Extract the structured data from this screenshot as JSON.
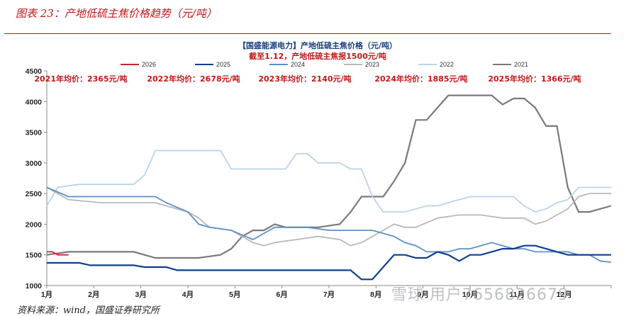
{
  "figure_caption": "图表 23：产地低硫主焦价格趋势（元/吨）",
  "source_note": "资料来源：wind，国盛证券研究所",
  "watermark": "雪球·用户7656826679",
  "chart_data": {
    "type": "line",
    "title": "【国盛能源电力】产地低硫主焦价格（元/吨）",
    "subtitle": "截至1.12，产地低硫主焦报1500元/吨",
    "x_labels": [
      "1月",
      "2月",
      "3月",
      "4月",
      "5月",
      "6月",
      "7月",
      "8月",
      "9月",
      "10月",
      "11月",
      "12月"
    ],
    "x_domain": [
      0,
      52
    ],
    "ylim": [
      1000,
      4500
    ],
    "y_ticks": [
      1000,
      1500,
      2000,
      2500,
      3000,
      3500,
      4000,
      4500
    ],
    "grid": "none",
    "legend_placement": "top",
    "annotations": [
      "2021年均价：2365元/吨",
      "2022年均价：2678元/吨",
      "2023年均价：2140元/吨",
      "2024年均价：1885元/吨",
      "2025年均价：1366元/吨"
    ],
    "series": [
      {
        "name": "2026",
        "color": "#d3202f",
        "x": [
          0,
          0.5,
          1,
          1.5,
          2
        ],
        "y": [
          1550,
          1550,
          1500,
          1500,
          1500
        ]
      },
      {
        "name": "2025",
        "color": "#0f3f8f",
        "x": [
          0,
          3,
          4,
          8,
          9,
          11,
          12,
          28,
          29,
          30,
          31,
          32,
          33,
          34,
          35,
          36,
          37,
          38,
          39,
          40,
          41,
          42,
          43,
          44,
          45,
          46,
          47,
          48,
          49,
          50,
          51,
          52
        ],
        "y": [
          1370,
          1370,
          1330,
          1330,
          1300,
          1300,
          1250,
          1250,
          1100,
          1100,
          1300,
          1500,
          1500,
          1450,
          1450,
          1550,
          1500,
          1400,
          1500,
          1500,
          1550,
          1600,
          1600,
          1650,
          1650,
          1600,
          1550,
          1500,
          1500,
          1500,
          1500,
          1500
        ]
      },
      {
        "name": "2024",
        "color": "#5b8fc9",
        "x": [
          0,
          2,
          3,
          5,
          10,
          11,
          13,
          14,
          15,
          17,
          19,
          20,
          21,
          22,
          24,
          26,
          27,
          29,
          30,
          31,
          32,
          33,
          34,
          35,
          36,
          37,
          38,
          39,
          40,
          41,
          42,
          43,
          44,
          45,
          46,
          47,
          48,
          49,
          50,
          51,
          52
        ],
        "y": [
          2600,
          2450,
          2450,
          2450,
          2450,
          2350,
          2200,
          2000,
          1950,
          1900,
          1750,
          1850,
          1950,
          1950,
          1950,
          1900,
          1900,
          1900,
          1900,
          1850,
          1800,
          1700,
          1650,
          1550,
          1550,
          1550,
          1600,
          1600,
          1650,
          1700,
          1650,
          1600,
          1600,
          1550,
          1550,
          1550,
          1550,
          1500,
          1500,
          1400,
          1380
        ]
      },
      {
        "name": "2023",
        "color": "#b8b8b8",
        "x": [
          0,
          2,
          5,
          8,
          10,
          11,
          13,
          14,
          15,
          17,
          18,
          19,
          20,
          21,
          23,
          25,
          27,
          28,
          29,
          30,
          31,
          32,
          33,
          34,
          36,
          38,
          40,
          42,
          44,
          45,
          46,
          47,
          48,
          49,
          50,
          52
        ],
        "y": [
          2600,
          2400,
          2350,
          2350,
          2350,
          2300,
          2200,
          2100,
          1950,
          1900,
          1800,
          1700,
          1650,
          1700,
          1750,
          1800,
          1750,
          1650,
          1700,
          1800,
          1900,
          2000,
          1950,
          1950,
          2100,
          2150,
          2150,
          2100,
          2100,
          2000,
          2050,
          2150,
          2250,
          2450,
          2500,
          2500
        ]
      },
      {
        "name": "2022",
        "color": "#b9d3ec",
        "x": [
          0,
          1,
          3,
          8,
          9,
          10,
          11,
          12,
          16,
          17,
          19,
          22,
          23,
          24,
          25,
          27,
          28,
          29,
          30,
          31,
          33,
          35,
          36,
          37,
          38,
          39,
          40,
          43,
          44,
          45,
          46,
          47,
          48,
          49,
          52
        ],
        "y": [
          2300,
          2600,
          2650,
          2650,
          2800,
          3200,
          3200,
          3200,
          3200,
          2900,
          2900,
          2900,
          3150,
          3150,
          3000,
          3000,
          2900,
          2900,
          2450,
          2200,
          2200,
          2300,
          2300,
          2350,
          2400,
          2450,
          2450,
          2450,
          2300,
          2200,
          2250,
          2350,
          2400,
          2600,
          2600
        ]
      },
      {
        "name": "2021",
        "color": "#7a7a7a",
        "x": [
          0,
          2,
          8,
          9,
          10,
          11,
          14,
          16,
          17,
          18,
          19,
          20,
          21,
          22,
          25,
          27,
          28,
          29,
          31,
          32,
          33,
          34,
          35,
          36,
          37,
          39,
          41,
          42,
          43,
          44,
          45,
          46,
          47,
          48,
          49,
          50,
          52
        ],
        "y": [
          1500,
          1550,
          1550,
          1500,
          1450,
          1450,
          1450,
          1500,
          1600,
          1800,
          1900,
          1900,
          2000,
          1950,
          1950,
          2000,
          2200,
          2450,
          2450,
          2700,
          3000,
          3700,
          3700,
          3900,
          4100,
          4100,
          4100,
          3950,
          4050,
          4050,
          3900,
          3600,
          3600,
          2600,
          2200,
          2200,
          2300
        ]
      }
    ]
  }
}
